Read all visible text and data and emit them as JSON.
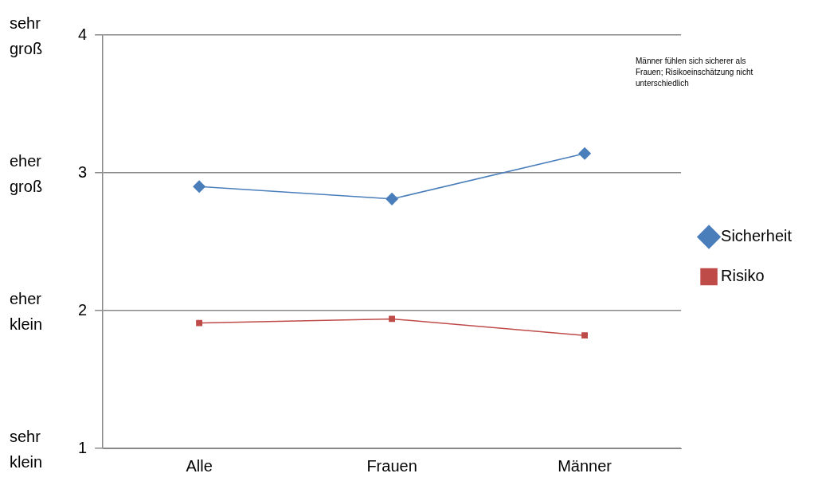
{
  "chart_data": {
    "type": "line",
    "categories": [
      "Alle",
      "Frauen",
      "Männer"
    ],
    "series": [
      {
        "name": "Sicherheit",
        "color": "#4a7ebb",
        "values": [
          2.9,
          2.81,
          3.14
        ],
        "marker": "diamond"
      },
      {
        "name": "Risiko",
        "color": "#be4b48",
        "values": [
          1.91,
          1.94,
          1.82
        ],
        "marker": "square"
      }
    ],
    "ylim": [
      1,
      4
    ],
    "yticks": [
      1,
      2,
      3,
      4
    ],
    "grid": "y",
    "legend": "right",
    "line_style": "solid",
    "annotations": [
      "Männer fühlen sich sicherer als Frauen; Risikoeinschätzung nicht unterschiedlich",
      "sehr klein",
      "eher klein",
      "eher groß",
      "sehr groß"
    ]
  }
}
